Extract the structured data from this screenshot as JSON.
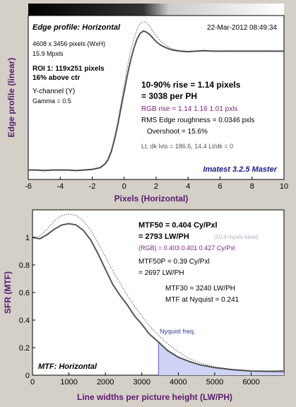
{
  "colors": {
    "background": "#d4d0c8",
    "plot_bg": "#ffffff",
    "title_purple": "#5a1a6e",
    "rgb_purple": "#7a1f7a",
    "imatest_blue": "#1a1a8c",
    "nyquist_blue": "#3a3a9a",
    "fill_blue": "#cfd4f6",
    "nyquist_line": "#5a5adb",
    "curve": "#555555",
    "text": "#000000",
    "gray_text": "#555555"
  },
  "edge_panel": {
    "title": "Edge profile: Horizontal",
    "date": "22-Mar-2012 08:49:34",
    "info": [
      "4608 x 3456 pixels (WxH)",
      "15.9 Mpxls"
    ],
    "roi": [
      "ROI 1:  119x251 pixels",
      "16% above ctr"
    ],
    "channel": "Y-channel  (Y)",
    "gamma": "Gamma = 0.5",
    "rise_line1": "10-90% rise = 1.14 pixels",
    "rise_line2": "= 3038 per PH",
    "rgb_rise": "RGB rise = 1.14  1.16  1.01 pxls",
    "roughness": "RMS Edge roughness = 0.0346 pxls",
    "overshoot": "Overshoot = 15.6%",
    "levels": "Lt, dk lvls = 186.6, 14.4   Lt/dk = 0",
    "brand": "Imatest 3.2.5 Master",
    "ylabel": "Edge profile (linear)",
    "xlabel": "Pixels (Horizontal)"
  },
  "mtf_panel": {
    "title": "MTF: Horizontal",
    "mtf50_line1": "MTF50 = 0.404 Cy/Pxl",
    "mtf50_line2": "= 2793 LW/PH",
    "ideal_note": "[10.4 mpxls ideal]",
    "rgb_mtf": "(RGB) = 0.403  0.401  0.427 Cy/Pxl",
    "mtf50p_line1": "MTF50P = 0.39 Cy/Pxl",
    "mtf50p_line2": "= 2697 LW/PH",
    "mtf30": "MTF30 = 3240 LW/PH",
    "mtf_nyquist": "MTF at Nyquist = 0.241",
    "nyquist_label": "Nyquist freq.",
    "ylabel": "SFR (MTF)",
    "xlabel": "Line widths per picture height (LW/PH)"
  },
  "chart_data": [
    {
      "type": "line",
      "title": "Edge profile: Horizontal",
      "xlabel": "Pixels (Horizontal)",
      "ylabel": "Edge profile (linear)",
      "xlim": [
        -6,
        10
      ],
      "ylim": [
        -0.08,
        1.3
      ],
      "grid": false,
      "xticks": [
        -6,
        -4,
        -2,
        0,
        2,
        4,
        6,
        8,
        10
      ],
      "series": [
        {
          "style": "solid",
          "x": [
            -6,
            -5.5,
            -5,
            -4.5,
            -4,
            -3.5,
            -3,
            -2.5,
            -2,
            -1.5,
            -1.2,
            -1,
            -0.8,
            -0.6,
            -0.4,
            -0.2,
            0,
            0.2,
            0.4,
            0.6,
            0.8,
            1,
            1.2,
            1.4,
            1.6,
            1.8,
            2,
            2.3,
            2.6,
            3,
            3.5,
            4,
            4.5,
            5,
            5.5,
            6,
            7,
            8,
            9,
            10
          ],
          "y": [
            0,
            0,
            -0.005,
            0,
            0,
            0,
            -0.005,
            0,
            0.005,
            0.02,
            0.05,
            0.09,
            0.16,
            0.26,
            0.38,
            0.52,
            0.66,
            0.8,
            0.92,
            1.02,
            1.1,
            1.15,
            1.17,
            1.16,
            1.14,
            1.11,
            1.08,
            1.05,
            1.03,
            1.01,
            1,
            0.995,
            1,
            1.005,
            1,
            1,
            1,
            1,
            1,
            1
          ]
        },
        {
          "style": "dotted",
          "x": [
            -6,
            -5,
            -4,
            -3,
            -2.5,
            -2,
            -1.5,
            -1.2,
            -1,
            -0.8,
            -0.6,
            -0.4,
            -0.2,
            0,
            0.2,
            0.4,
            0.6,
            0.8,
            1,
            1.2,
            1.4,
            1.6,
            1.8,
            2,
            2.3,
            2.6,
            3,
            3.5,
            4,
            5,
            6,
            7,
            8,
            9,
            10
          ],
          "y": [
            0,
            0,
            0,
            -0.005,
            0,
            0.005,
            0.015,
            0.045,
            0.08,
            0.15,
            0.26,
            0.4,
            0.56,
            0.72,
            0.87,
            1,
            1.1,
            1.18,
            1.23,
            1.25,
            1.24,
            1.21,
            1.17,
            1.13,
            1.08,
            1.05,
            1.02,
            1.005,
            1,
            1,
            1,
            1,
            1,
            1,
            1
          ]
        }
      ]
    },
    {
      "type": "line",
      "title": "MTF: Horizontal",
      "xlabel": "Line widths per picture height (LW/PH)",
      "ylabel": "SFR (MTF)",
      "xlim": [
        0,
        6900
      ],
      "ylim": [
        0,
        1.2
      ],
      "grid": false,
      "xticks": [
        0,
        1000,
        2000,
        3000,
        4000,
        5000,
        6000
      ],
      "yticks": [
        0,
        0.2,
        0.4,
        0.6,
        0.8,
        1
      ],
      "nyquist": 3456,
      "series": [
        {
          "style": "solid",
          "x": [
            0,
            200,
            400,
            600,
            800,
            1000,
            1200,
            1400,
            1600,
            1800,
            2000,
            2200,
            2400,
            2600,
            2800,
            3000,
            3200,
            3456,
            3700,
            4000,
            4300,
            4600,
            5000,
            5500,
            6000,
            6500,
            6900
          ],
          "y": [
            1,
            0.99,
            1.02,
            1.06,
            1.09,
            1.1,
            1.09,
            1.05,
            0.98,
            0.88,
            0.77,
            0.66,
            0.58,
            0.51,
            0.43,
            0.37,
            0.3,
            0.241,
            0.18,
            0.13,
            0.1,
            0.075,
            0.055,
            0.04,
            0.03,
            0.028,
            0.03
          ]
        },
        {
          "style": "dotted",
          "x": [
            0,
            200,
            400,
            600,
            800,
            1000,
            1200,
            1400,
            1600,
            1800,
            2000,
            2200,
            2400,
            2600,
            2800,
            3000,
            3200,
            3456,
            3700,
            4000,
            4300,
            4600,
            5000,
            5500,
            6000,
            6500,
            6900
          ],
          "y": [
            1,
            1.01,
            1.06,
            1.12,
            1.16,
            1.17,
            1.16,
            1.12,
            1.05,
            0.96,
            0.86,
            0.76,
            0.67,
            0.58,
            0.5,
            0.43,
            0.36,
            0.29,
            0.23,
            0.17,
            0.12,
            0.09,
            0.06,
            0.04,
            0.03,
            0.025,
            0.02
          ]
        }
      ]
    }
  ]
}
